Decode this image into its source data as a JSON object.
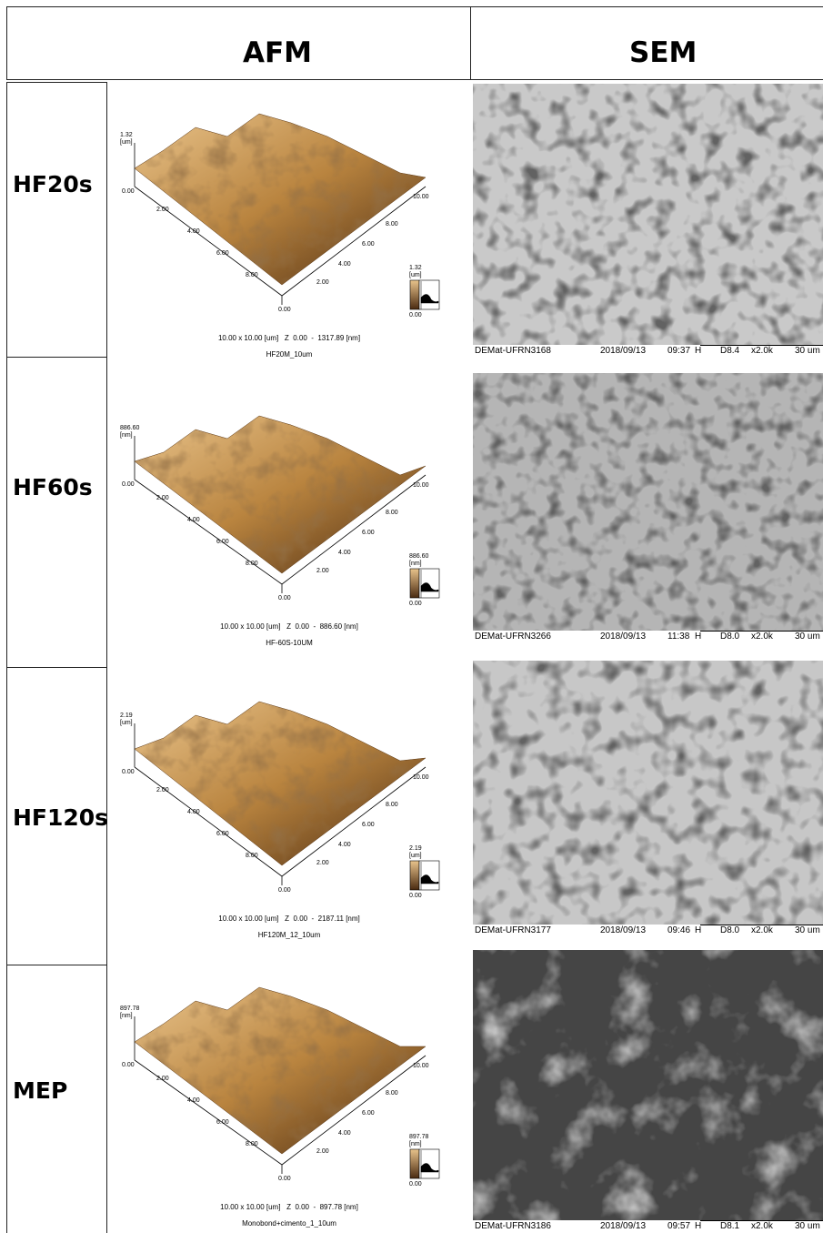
{
  "headers": {
    "afm": "AFM",
    "sem": "SEM"
  },
  "rows": [
    {
      "label": "HF20s",
      "afm": {
        "z_top_value": "1.32",
        "z_unit": "[um]",
        "z_bottom": "0.00",
        "axis_left": [
          "2.00",
          "4.00",
          "6.00",
          "8.00"
        ],
        "axis_right": [
          "2.00",
          "4.00",
          "6.00",
          "8.00",
          "10.00"
        ],
        "corner": "0.00",
        "cbar_top": "1.32",
        "cbar_unit": "[um]",
        "cbar_bottom": "0.00",
        "info": "10.00 x 10.00 [um]   Z  0.00  -  1317.89 [nm]",
        "name": "HF20M_10um"
      },
      "sem": {
        "id": "DEMat-UFRN3168",
        "date": "2018/09/13",
        "time": "09:37",
        "mode": "H",
        "wd": "D8.4",
        "mag": "x2.0k",
        "scale": "30 um"
      }
    },
    {
      "label": "HF60s",
      "afm": {
        "z_top_value": "886.60",
        "z_unit": "[nm]",
        "z_bottom": "0.00",
        "axis_left": [
          "2.00",
          "4.00",
          "6.00",
          "8.00"
        ],
        "axis_right": [
          "2.00",
          "4.00",
          "6.00",
          "8.00",
          "10.00"
        ],
        "corner": "0.00",
        "cbar_top": "886.60",
        "cbar_unit": "[nm]",
        "cbar_bottom": "0.00",
        "info": "10.00 x 10.00 [um]   Z  0.00  -  886.60 [nm]",
        "name": "HF-60S-10UM"
      },
      "sem": {
        "id": "DEMat-UFRN3266",
        "date": "2018/09/13",
        "time": "11:38",
        "mode": "H",
        "wd": "D8.0",
        "mag": "x2.0k",
        "scale": "30 um"
      }
    },
    {
      "label": "HF120s",
      "afm": {
        "z_top_value": "2.19",
        "z_unit": "[um]",
        "z_bottom": "0.00",
        "axis_left": [
          "2.00",
          "4.00",
          "6.00",
          "8.00"
        ],
        "axis_right": [
          "2.00",
          "4.00",
          "6.00",
          "8.00",
          "10.00"
        ],
        "corner": "0.00",
        "cbar_top": "2.19",
        "cbar_unit": "[um]",
        "cbar_bottom": "0.00",
        "info": "10.00 x 10.00 [um]   Z  0.00  -  2187.11 [nm]",
        "name": "HF120M_12_10um"
      },
      "sem": {
        "id": "DEMat-UFRN3177",
        "date": "2018/09/13",
        "time": "09:46",
        "mode": "H",
        "wd": "D8.0",
        "mag": "x2.0k",
        "scale": "30 um"
      }
    },
    {
      "label": "MEP",
      "afm": {
        "z_top_value": "897.78",
        "z_unit": "[nm]",
        "z_bottom": "0.00",
        "axis_left": [
          "2.00",
          "4.00",
          "6.00",
          "8.00"
        ],
        "axis_right": [
          "2.00",
          "4.00",
          "6.00",
          "8.00",
          "10.00"
        ],
        "corner": "0.00",
        "cbar_top": "897.78",
        "cbar_unit": "[nm]",
        "cbar_bottom": "0.00",
        "info": "10.00 x 10.00 [um]   Z  0.00  -  897.78 [nm]",
        "name": "Monobond+cimento_1_10um"
      },
      "sem": {
        "id": "DEMat-UFRN3186",
        "date": "2018/09/13",
        "time": "09:57",
        "mode": "H",
        "wd": "D8.1",
        "mag": "x2.0k",
        "scale": "30 um"
      }
    }
  ],
  "colors": {
    "afm_light": "#e9c48c",
    "afm_mid": "#b9843f",
    "afm_dark": "#4a2a10",
    "sem_dark_bg": "#3e3e3e"
  }
}
